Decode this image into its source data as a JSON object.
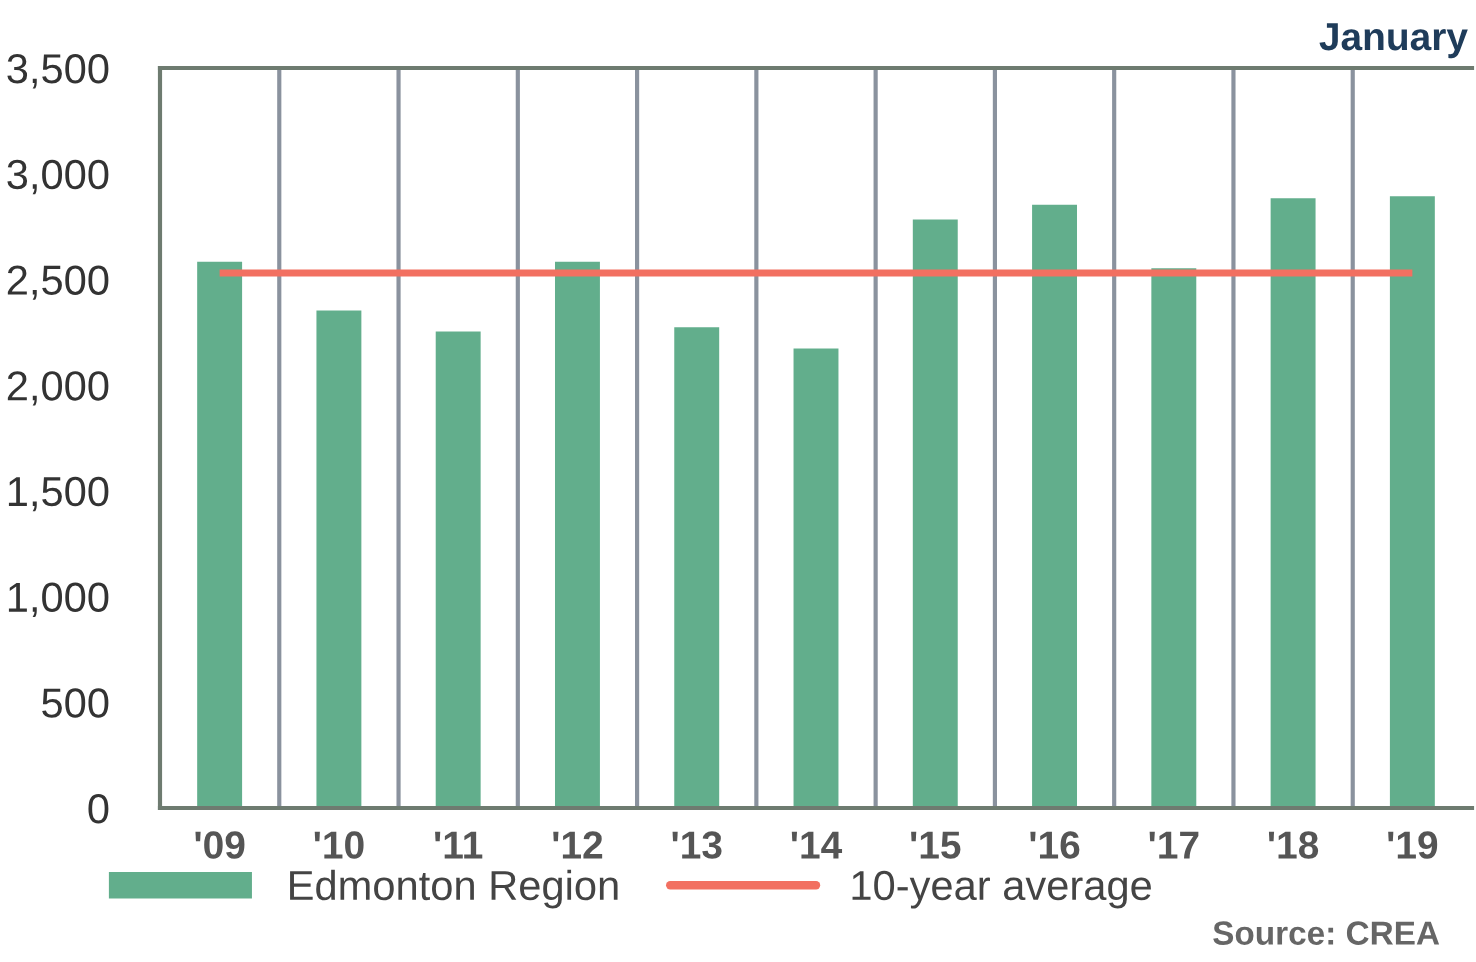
{
  "chart_data": {
    "type": "bar",
    "title": "January",
    "categories": [
      "'09",
      "'10",
      "'11",
      "'12",
      "'13",
      "'14",
      "'15",
      "'16",
      "'17",
      "'18",
      "'19"
    ],
    "series": [
      {
        "name": "Edmonton Region",
        "color": "#62ae8c",
        "values": [
          2590,
          2360,
          2260,
          2590,
          2280,
          2180,
          2790,
          2860,
          2560,
          2890,
          2900
        ]
      },
      {
        "name": "10-year average",
        "type": "line",
        "color": "#f27061",
        "values": [
          2530,
          2530,
          2530,
          2530,
          2530,
          2530,
          2530,
          2530,
          2530,
          2530,
          2530
        ]
      }
    ],
    "ylim": [
      0,
      3500
    ],
    "yticks": [
      {
        "value": 0,
        "label": "0"
      },
      {
        "value": 500,
        "label": "500"
      },
      {
        "value": 1000,
        "label": "1,000"
      },
      {
        "value": 1500,
        "label": "1,500"
      },
      {
        "value": 2000,
        "label": "2,000"
      },
      {
        "value": 2500,
        "label": "2,500"
      },
      {
        "value": 3000,
        "label": "3,000"
      },
      {
        "value": 3500,
        "label": "3,500"
      }
    ],
    "grid": "x",
    "legend": "bottom",
    "marker": "none",
    "annotations": [
      "Source: CREA"
    ]
  }
}
